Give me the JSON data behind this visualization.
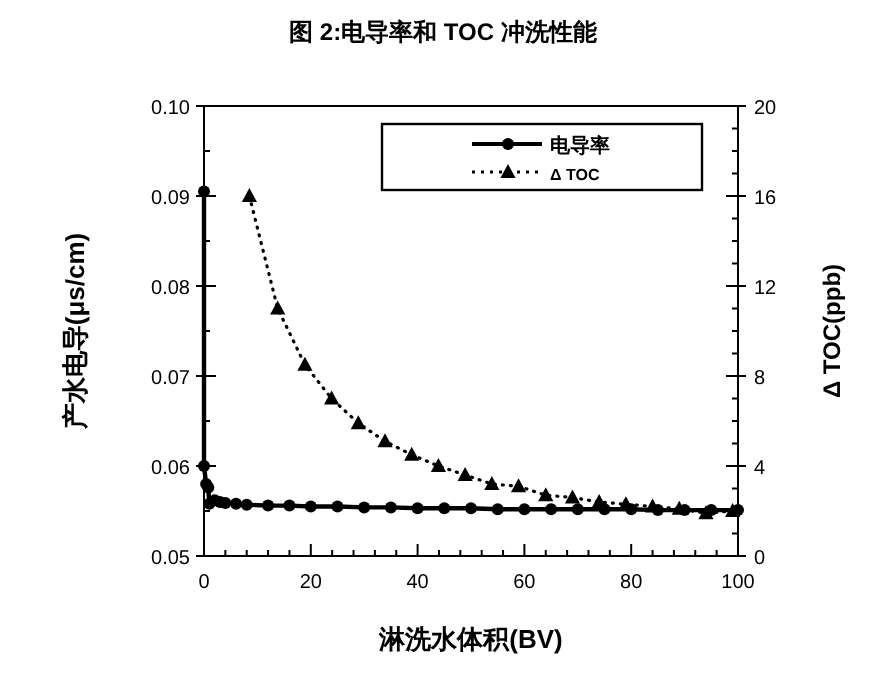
{
  "chart_data": {
    "type": "line",
    "title": "图 2:电导率和 TOC 冲洗性能",
    "xlabel": "淋洗水体积(BV)",
    "ylabel": "产水电导(μs/cm)",
    "y2label": "Δ TOC(ppb)",
    "xlim": [
      0,
      100
    ],
    "xticks": [
      0,
      20,
      40,
      60,
      80,
      100
    ],
    "ylim": [
      0.05,
      0.1
    ],
    "yticks": [
      {
        "value": 0.05,
        "label": "0.05"
      },
      {
        "value": 0.06,
        "label": "0.06"
      },
      {
        "value": 0.07,
        "label": "0.07"
      },
      {
        "value": 0.08,
        "label": "0.08"
      },
      {
        "value": 0.09,
        "label": "0.09"
      },
      {
        "value": 0.1,
        "label": "0.10"
      }
    ],
    "y2lim": [
      0,
      20
    ],
    "y2ticks": [
      0,
      4,
      8,
      12,
      16,
      20
    ],
    "legend": "top right",
    "grid": false,
    "series": [
      {
        "name": "电导率",
        "color": "#000000",
        "marker": "circle",
        "line_style": "solid",
        "x": [
          0,
          0,
          0.4,
          0.8,
          1,
          2,
          3,
          4,
          6,
          8,
          12,
          16,
          20,
          25,
          30,
          35,
          40,
          45,
          50,
          55,
          60,
          65,
          70,
          75,
          80,
          85,
          90,
          95,
          100
        ],
        "values": [
          0.0905,
          0.06,
          0.058,
          0.0576,
          0.0558,
          0.0562,
          0.056,
          0.0559,
          0.0558,
          0.0557,
          0.0556,
          0.0556,
          0.0555,
          0.0555,
          0.0554,
          0.0554,
          0.0553,
          0.0553,
          0.0553,
          0.0552,
          0.0552,
          0.0552,
          0.0552,
          0.0552,
          0.0552,
          0.0551,
          0.0551,
          0.0551,
          0.0551
        ]
      },
      {
        "name": "Δ TOC",
        "axis": "y2",
        "color": "#000000",
        "marker": "triangle",
        "line_style": "dotted",
        "x": [
          8.5,
          13.8,
          18.9,
          23.9,
          28.9,
          33.9,
          38.9,
          43.9,
          48.9,
          53.9,
          58.9,
          64,
          69,
          74,
          79,
          84,
          89,
          94,
          99
        ],
        "values": [
          16.0,
          11.0,
          8.5,
          7.0,
          5.9,
          5.1,
          4.5,
          4.0,
          3.6,
          3.2,
          3.1,
          2.7,
          2.6,
          2.4,
          2.3,
          2.2,
          2.1,
          1.9,
          2.0
        ]
      }
    ]
  }
}
